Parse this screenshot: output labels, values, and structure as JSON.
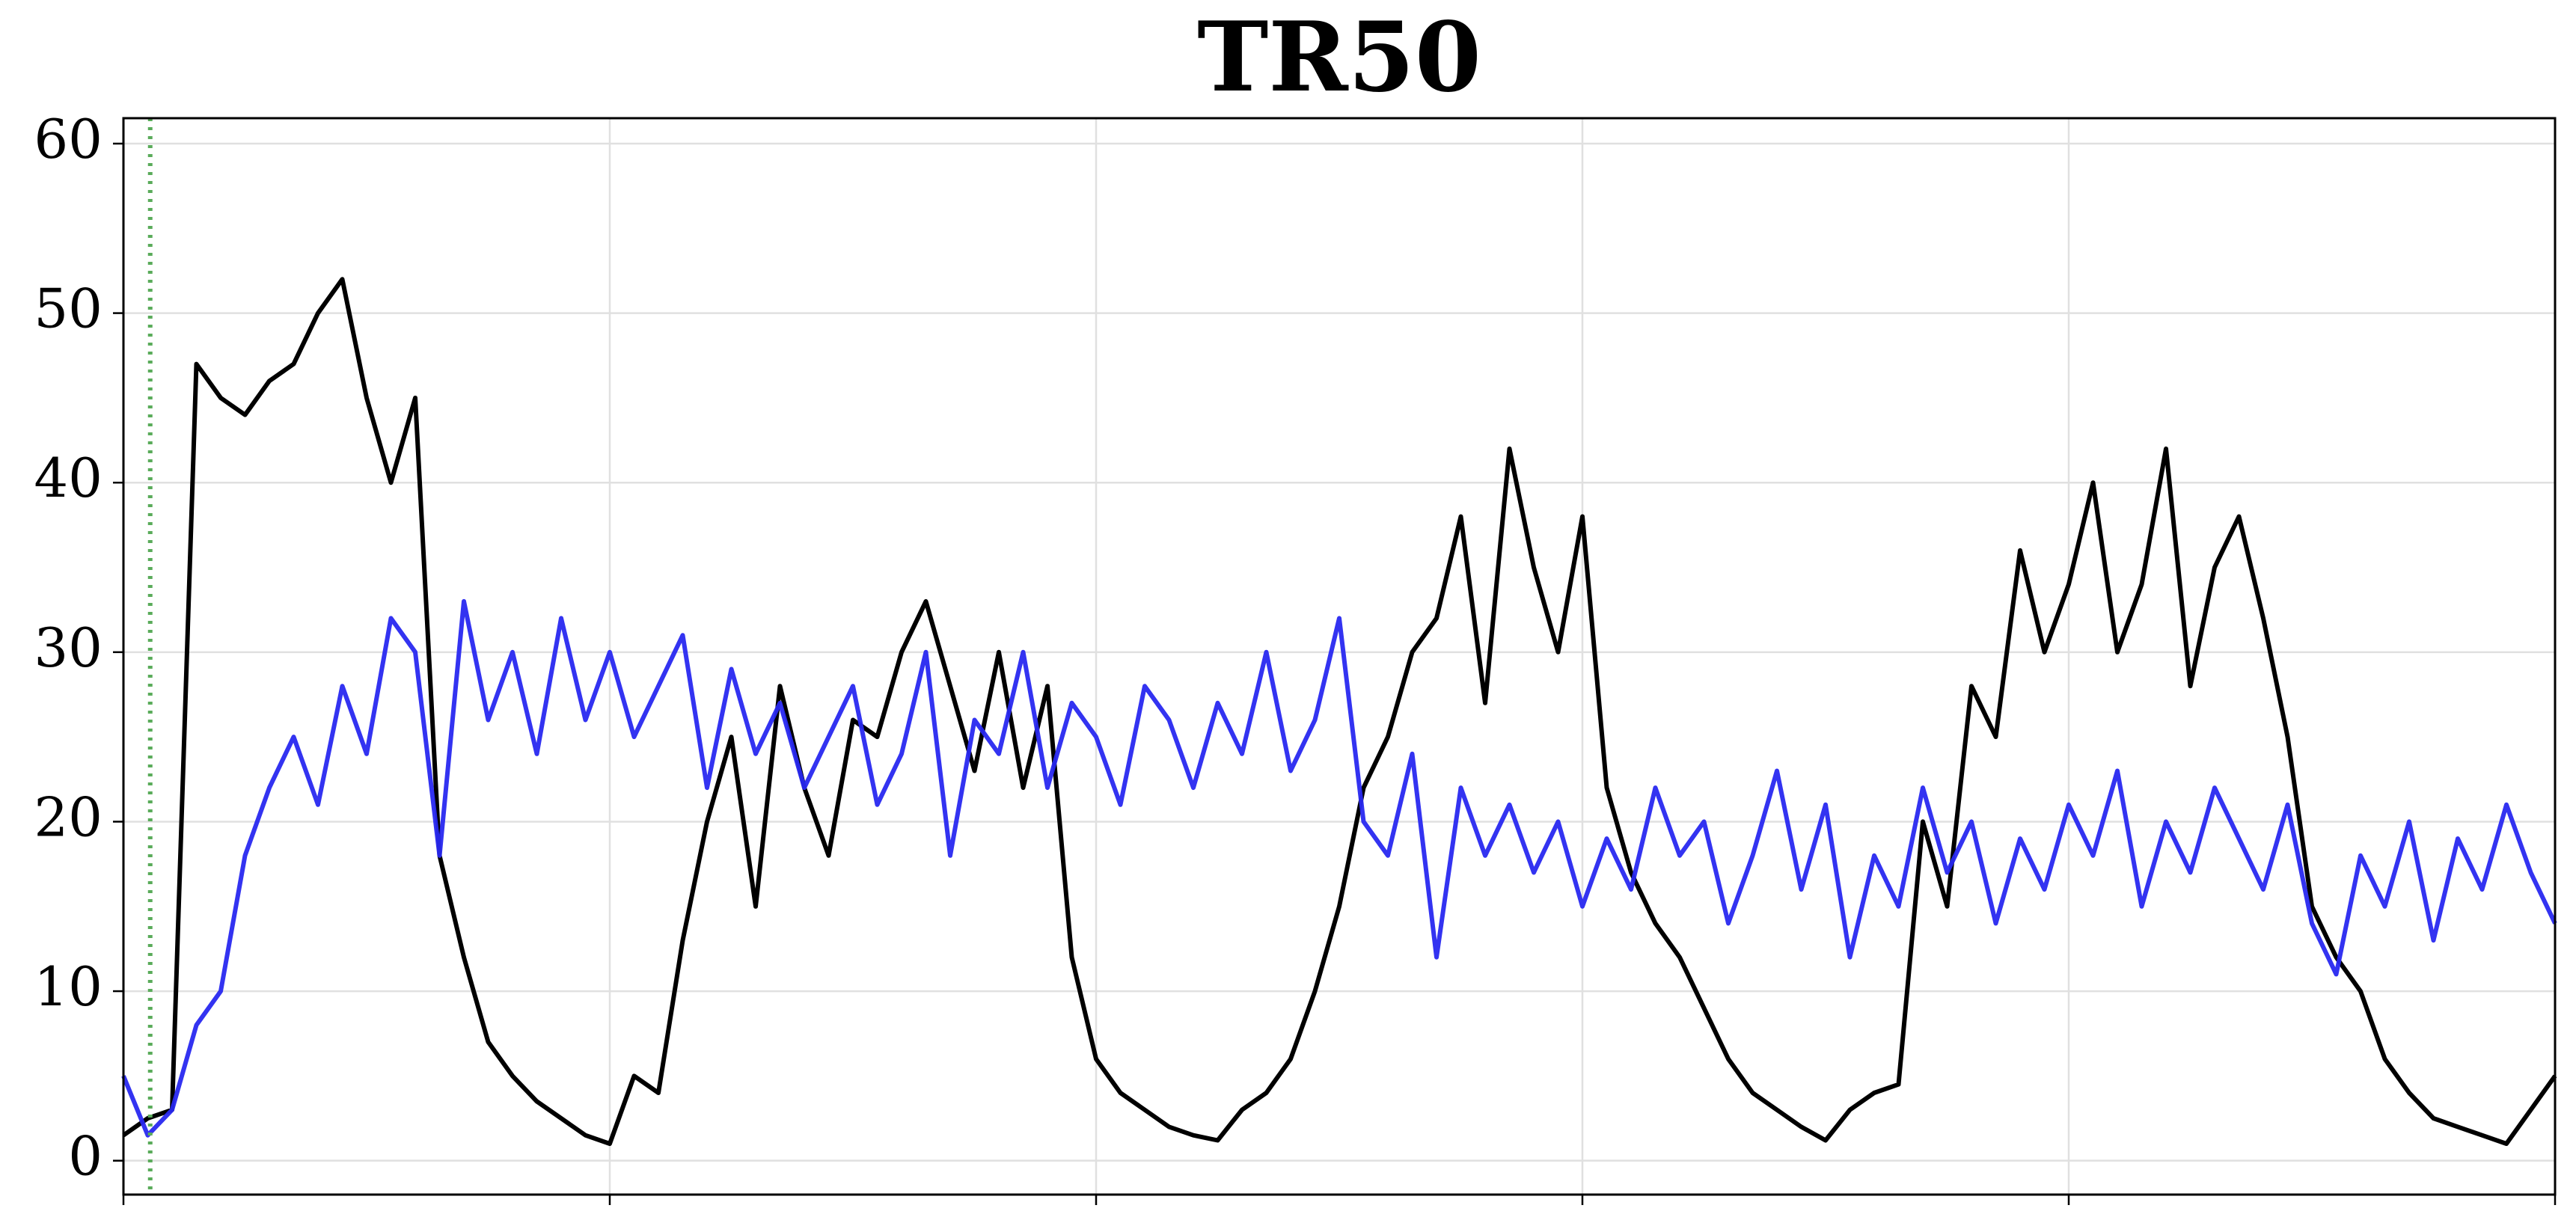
{
  "chart_data": {
    "type": "line",
    "title": "TR50",
    "x": [
      0,
      10,
      20,
      30,
      40,
      50,
      60,
      70,
      80,
      90,
      100,
      110,
      120,
      130,
      140,
      150,
      160,
      170,
      180,
      190,
      200,
      210,
      220,
      230,
      240,
      250,
      260,
      270,
      280,
      290,
      300,
      310,
      320,
      330,
      340,
      350,
      360,
      370,
      380,
      390,
      400,
      410,
      420,
      430,
      440,
      450,
      460,
      470,
      480,
      490,
      500,
      510,
      520,
      530,
      540,
      550,
      560,
      570,
      580,
      590,
      600,
      610,
      620,
      630,
      640,
      650,
      660,
      670,
      680,
      690,
      700,
      710,
      720,
      730,
      740,
      750,
      760,
      770,
      780,
      790,
      800,
      810,
      820,
      830,
      840,
      850,
      860,
      870,
      880,
      890,
      900,
      910,
      920,
      930,
      940,
      950,
      960,
      970,
      980,
      990,
      1000
    ],
    "series": [
      {
        "color": "#000000",
        "values": [
          1.5,
          2.5,
          3,
          47,
          45,
          44,
          46,
          47,
          50,
          52,
          45,
          40,
          45,
          18,
          12,
          7,
          5,
          3.5,
          2.5,
          1.5,
          1,
          5,
          4,
          13,
          20,
          25,
          15,
          28,
          22,
          18,
          26,
          25,
          30,
          33,
          28,
          23,
          30,
          22,
          28,
          12,
          6,
          4,
          3,
          2,
          1.5,
          1.2,
          3,
          4,
          6,
          10,
          15,
          22,
          25,
          30,
          32,
          38,
          27,
          42,
          35,
          30,
          38,
          22,
          17,
          14,
          12,
          9,
          6,
          4,
          3,
          2,
          1.2,
          3,
          4,
          4.5,
          20,
          15,
          28,
          25,
          36,
          30,
          34,
          40,
          30,
          34,
          42,
          28,
          35,
          38,
          32,
          25,
          15,
          12,
          10,
          6,
          4,
          2.5,
          2,
          1.5,
          1,
          3,
          5
        ]
      },
      {
        "color": "#2828f0",
        "values": [
          5,
          1.5,
          3,
          8,
          10,
          18,
          22,
          25,
          21,
          28,
          24,
          32,
          30,
          18,
          33,
          26,
          30,
          24,
          32,
          26,
          30,
          25,
          28,
          31,
          22,
          29,
          24,
          27,
          22,
          25,
          28,
          21,
          24,
          30,
          18,
          26,
          24,
          30,
          22,
          27,
          25,
          21,
          28,
          26,
          22,
          27,
          24,
          30,
          23,
          26,
          32,
          20,
          18,
          24,
          12,
          22,
          18,
          21,
          17,
          20,
          15,
          19,
          16,
          22,
          18,
          20,
          14,
          18,
          23,
          16,
          21,
          12,
          18,
          15,
          22,
          17,
          20,
          14,
          19,
          16,
          21,
          18,
          23,
          15,
          20,
          17,
          22,
          19,
          16,
          21,
          14,
          11,
          18,
          15,
          20,
          13,
          19,
          16,
          21,
          17,
          14
        ]
      }
    ],
    "xlim": [
      0,
      1000
    ],
    "xticks": [
      0,
      200,
      400,
      600,
      800,
      1000
    ],
    "ylim": [
      -2,
      61.5
    ],
    "yticks": [
      0,
      10,
      20,
      30,
      40,
      50,
      60
    ],
    "grid": true,
    "vline_x": 11,
    "vline_color": "#5aab5a"
  }
}
